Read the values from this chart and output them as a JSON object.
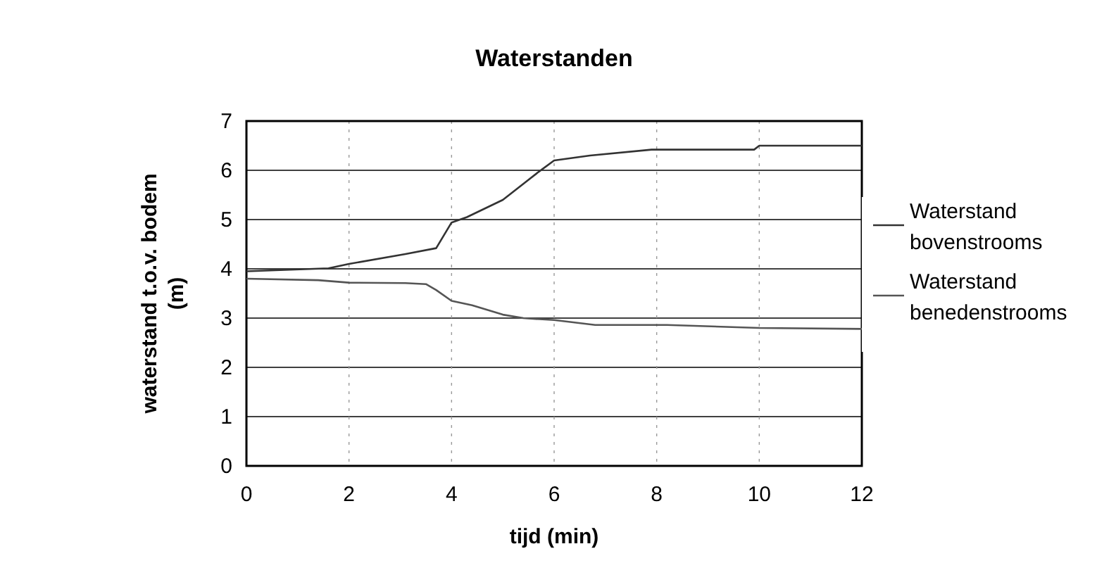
{
  "chart_data": {
    "type": "line",
    "title": "Waterstanden",
    "xlabel": "tijd (min)",
    "ylabel": "waterstand t.o.v. bodem (m)",
    "xlim": [
      0,
      12
    ],
    "xticks": [
      0,
      2,
      4,
      6,
      8,
      10,
      12
    ],
    "ylim": [
      0,
      7
    ],
    "yticks": [
      0,
      1,
      2,
      3,
      4,
      5,
      6,
      7
    ],
    "grid": true,
    "legend": "right",
    "marker": "none",
    "line_style": "solid",
    "series": [
      {
        "name": "Waterstand bovenstrooms",
        "color": "#333333",
        "x": [
          0,
          1.6,
          2,
          3.1,
          3.7,
          4,
          4.3,
          5,
          5.7,
          6,
          6.7,
          7.9,
          9.9,
          10,
          12
        ],
        "values": [
          3.95,
          4.01,
          4.1,
          4.3,
          4.42,
          4.94,
          5.05,
          5.4,
          5.97,
          6.2,
          6.3,
          6.42,
          6.42,
          6.5,
          6.5
        ]
      },
      {
        "name": "Waterstand benedenstrooms",
        "color": "#555555",
        "x": [
          0,
          1.4,
          2,
          3.1,
          3.5,
          3.7,
          4,
          4.4,
          5,
          5.4,
          6,
          6.8,
          8.2,
          10,
          12
        ],
        "values": [
          3.8,
          3.77,
          3.72,
          3.71,
          3.69,
          3.57,
          3.35,
          3.26,
          3.07,
          3,
          2.96,
          2.86,
          2.86,
          2.8,
          2.78
        ]
      }
    ]
  }
}
